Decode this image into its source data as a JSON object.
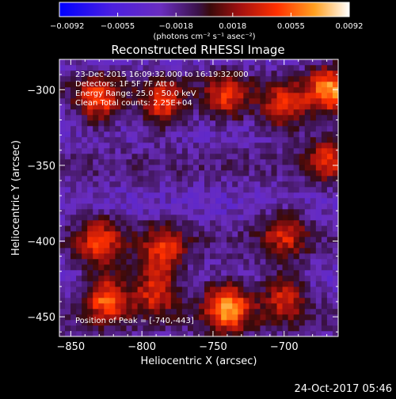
{
  "chart_data": {
    "type": "heatmap",
    "title": "Reconstructed RHESSI Image",
    "xlabel": "Heliocentric X (arcsec)",
    "ylabel": "Heliocentric Y (arcsec)",
    "xlim": [
      -858,
      -662
    ],
    "ylim": [
      -463,
      -280
    ],
    "xticks": [
      -850,
      -800,
      -750,
      -700
    ],
    "yticks": [
      -300,
      -350,
      -400,
      -450
    ],
    "grid": false,
    "colorbar": {
      "position": "top",
      "range": [
        -0.0092,
        0.0092
      ],
      "ticks": [
        "-0.0092",
        "-0.0055",
        "-0.0018",
        "0.0018",
        "0.0055",
        "0.0092"
      ],
      "unit_label": "(photons cm⁻² s⁻¹ asec⁻²)"
    },
    "annotations": [
      "23-Dec-2015 16:09:32.000 to 16:19:32.000",
      "Detectors: 1F 5F 7F  Att 0",
      "Energy Range: 25.0 - 50.0 keV",
      "Clean    Total counts: 2.25E+04"
    ],
    "peak_label": "Position of Peak = [-740,-443]",
    "peak": [
      -740,
      -443
    ],
    "sources": [
      {
        "x": -830,
        "y": -307,
        "amp": 0.0065
      },
      {
        "x": -785,
        "y": -310,
        "amp": 0.006
      },
      {
        "x": -740,
        "y": -305,
        "amp": 0.0055
      },
      {
        "x": -700,
        "y": -312,
        "amp": 0.006
      },
      {
        "x": -668,
        "y": -300,
        "amp": 0.008
      },
      {
        "x": -668,
        "y": -345,
        "amp": 0.0055
      },
      {
        "x": -700,
        "y": -395,
        "amp": 0.005
      },
      {
        "x": -830,
        "y": -400,
        "amp": 0.006
      },
      {
        "x": -785,
        "y": -405,
        "amp": 0.0055
      },
      {
        "x": -825,
        "y": -437,
        "amp": 0.0075
      },
      {
        "x": -790,
        "y": -432,
        "amp": 0.0065
      },
      {
        "x": -740,
        "y": -443,
        "amp": 0.0092
      },
      {
        "x": -700,
        "y": -436,
        "amp": 0.0055
      }
    ]
  },
  "footer": {
    "timestamp": "24-Oct-2017 05:46"
  }
}
